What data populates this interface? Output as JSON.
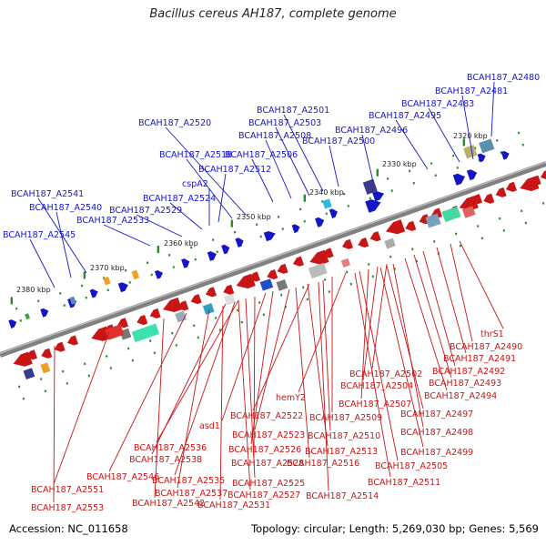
{
  "title": "Bacillus cereus AH187, complete genome",
  "footer": {
    "accession": "Accession: NC_011658",
    "summary": "Topology: circular; Length: 5,269,030 bp; Genes: 5,569"
  },
  "colors": {
    "forward": "#1515c8",
    "reverse": "#c81515",
    "backbone": "#808080",
    "tick": "#2a8a2a"
  },
  "scale_labels": [
    "2320 kbp",
    "2330 kbp",
    "2340 kbp",
    "2350 kbp",
    "2360 kbp",
    "2370 kbp",
    "2380 kbp"
  ],
  "forward_labels": [
    "BCAH187_A2480",
    "BCAH187_A2481",
    "BCAH187_A2483",
    "BCAH187_A2495",
    "BCAH187_A2496",
    "BCAH187_A2500",
    "BCAH187_A2501",
    "BCAH187_A2503",
    "BCAH187_A2508",
    "BCAH187_A2506",
    "BCAH187_A2520",
    "BCAH187_A2518",
    "BCAH187_A2512",
    "cspA2",
    "BCAH187_A2524",
    "BCAH187_A2529",
    "BCAH187_A2533",
    "BCAH187_A2541",
    "BCAH187_A2540",
    "BCAH187_A2545"
  ],
  "reverse_labels": [
    "thrS1",
    "BCAH187_A2490",
    "BCAH187_A2491",
    "BCAH187_A2492",
    "BCAH187_A2493",
    "BCAH187_A2494",
    "BCAH187_A2502",
    "BCAH187_A2504",
    "BCAH187_A2507",
    "hemY2",
    "BCAH187_A2509",
    "BCAH187_A2497",
    "BCAH187_A2498",
    "BCAH187_A2522",
    "BCAH187_A2510",
    "BCAH187_A2499",
    "BCAH187_A2523",
    "BCAH187_A2513",
    "asd1",
    "BCAH187_A2505",
    "BCAH187_A2536",
    "BCAH187_A2526",
    "BCAH187_A2516",
    "BCAH187_A2538",
    "BCAH187_A2528",
    "BCAH187_A2511",
    "BCAH187_A2546",
    "BCAH187_A2535",
    "BCAH187_A2525",
    "BCAH187_A2514",
    "BCAH187_A2551",
    "BCAH187_A2537",
    "BCAH187_A2527",
    "BCAH187_A2542",
    "BCAH187_A2531",
    "BCAH187_A2553"
  ]
}
